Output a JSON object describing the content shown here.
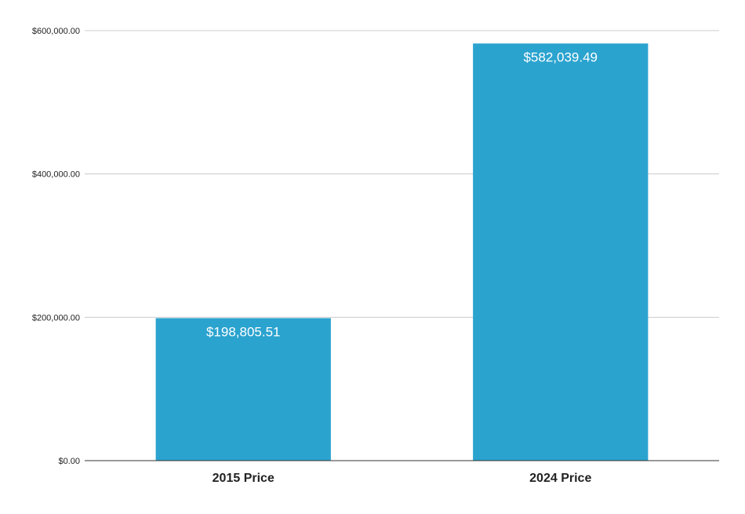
{
  "chart_data": {
    "type": "bar",
    "title": "",
    "xlabel": "",
    "ylabel": "",
    "categories": [
      "2015 Price",
      "2024 Price"
    ],
    "values": [
      198805.51,
      582039.49
    ],
    "data_labels": [
      "$198,805.51",
      "$582,039.49"
    ],
    "ylim": [
      0,
      600000
    ],
    "y_ticks": [
      0,
      200000,
      400000,
      600000
    ],
    "y_tick_labels": [
      "$0.00",
      "$200,000.00",
      "$400,000.00",
      "$600,000.00"
    ],
    "grid": true,
    "legend": "none",
    "colors": {
      "bar": "#2ba3cf",
      "grid": "#cccccc",
      "axis": "#333333",
      "tick_text": "#222222",
      "data_label_text": "#ffffff"
    }
  }
}
